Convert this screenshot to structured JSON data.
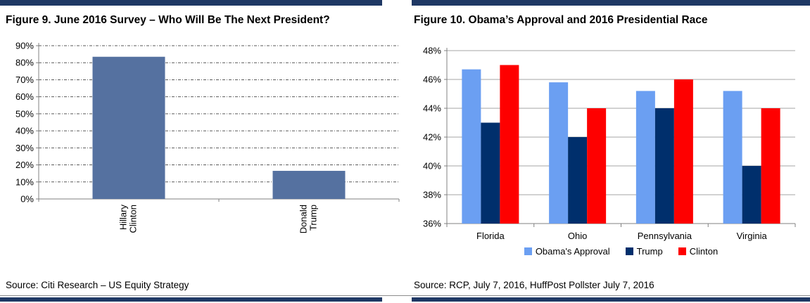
{
  "colors": {
    "accent_navy": "#1F3864",
    "axis": "#808080",
    "grid_dashed": "#595959",
    "grid_solid": "#A6A6A6",
    "hairline": "#8C8C8C",
    "text": "#000000"
  },
  "chart_data": [
    {
      "type": "bar",
      "title": "Figure 9. June 2016 Survey – Who Will Be The Next President?",
      "source": "Source: Citi Research – US Equity Strategy",
      "categories": [
        "Hillary Clinton",
        "Donald Trump"
      ],
      "values": [
        83.5,
        16.5
      ],
      "bar_color": "#5571A0",
      "xlabel": "",
      "ylabel": "",
      "ylim": [
        0,
        90
      ],
      "ytick_step": 10,
      "ytick_suffix": "%",
      "grid": "dashed",
      "legend_position": "none"
    },
    {
      "type": "bar",
      "title": "Figure 10. Obama’s Approval and 2016 Presidential Race",
      "source": "Source: RCP, July 7, 2016, HuffPost Pollster July 7, 2016",
      "categories": [
        "Florida",
        "Ohio",
        "Pennsylvania",
        "Virginia"
      ],
      "series": [
        {
          "name": "Obama's Approval",
          "color": "#6B9FF2",
          "values": [
            46.7,
            45.8,
            45.2,
            45.2
          ]
        },
        {
          "name": "Trump",
          "color": "#002F6C",
          "values": [
            43,
            42,
            44,
            40
          ]
        },
        {
          "name": "Clinton",
          "color": "#FE0000",
          "values": [
            47,
            44,
            46,
            44
          ]
        }
      ],
      "xlabel": "",
      "ylabel": "",
      "ylim": [
        36,
        48
      ],
      "ytick_step": 2,
      "ytick_suffix": "%",
      "grid": "solid",
      "legend_position": "bottom"
    }
  ]
}
